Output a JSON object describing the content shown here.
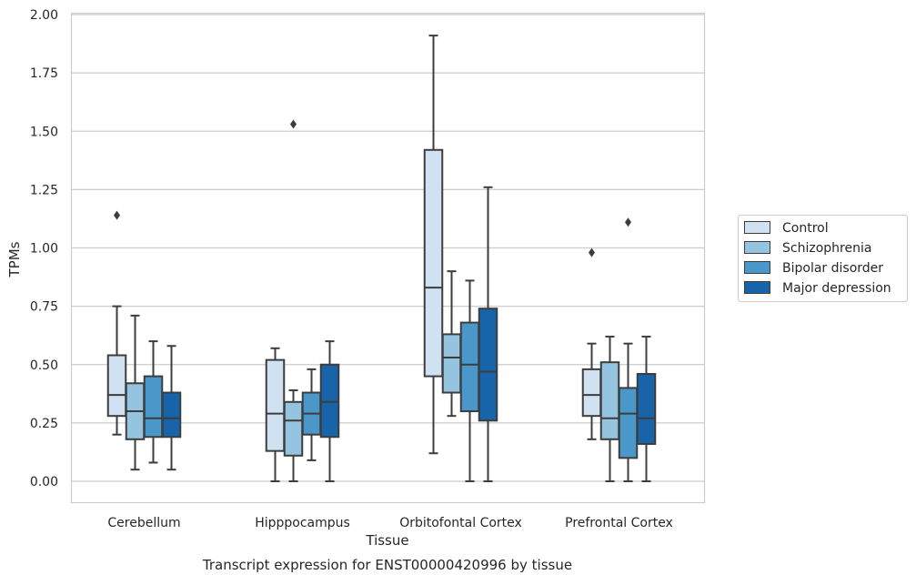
{
  "chart_data": {
    "type": "box",
    "xlabel": "Tissue",
    "ylabel": "TPMs",
    "caption": "Transcript expression for ENST00000420996 by tissue",
    "ylim": [
      -0.09,
      2.01
    ],
    "yticks": [
      "0.00",
      "0.25",
      "0.50",
      "0.75",
      "1.00",
      "1.25",
      "1.50",
      "1.75",
      "2.00"
    ],
    "grid": true,
    "legend_position": "right",
    "categories": [
      "Cerebellum",
      "Hipppocampus",
      "Orbitofontal Cortex",
      "Prefrontal Cortex"
    ],
    "series": [
      {
        "name": "Control",
        "color": "#d0e1f2",
        "boxes": [
          {
            "whislo": 0.2,
            "q1": 0.28,
            "med": 0.37,
            "q3": 0.54,
            "whishi": 0.75,
            "fliers": [
              1.14
            ]
          },
          {
            "whislo": 0.0,
            "q1": 0.13,
            "med": 0.29,
            "q3": 0.52,
            "whishi": 0.57,
            "fliers": []
          },
          {
            "whislo": 0.12,
            "q1": 0.45,
            "med": 0.83,
            "q3": 1.42,
            "whishi": 1.91,
            "fliers": []
          },
          {
            "whislo": 0.18,
            "q1": 0.28,
            "med": 0.37,
            "q3": 0.48,
            "whishi": 0.59,
            "fliers": [
              0.98
            ]
          }
        ]
      },
      {
        "name": "Schizophrenia",
        "color": "#94c4df",
        "boxes": [
          {
            "whislo": 0.05,
            "q1": 0.18,
            "med": 0.3,
            "q3": 0.42,
            "whishi": 0.71,
            "fliers": []
          },
          {
            "whislo": 0.0,
            "q1": 0.11,
            "med": 0.26,
            "q3": 0.34,
            "whishi": 0.39,
            "fliers": [
              1.53
            ]
          },
          {
            "whislo": 0.28,
            "q1": 0.38,
            "med": 0.53,
            "q3": 0.63,
            "whishi": 0.9,
            "fliers": []
          },
          {
            "whislo": 0.0,
            "q1": 0.18,
            "med": 0.27,
            "q3": 0.51,
            "whishi": 0.62,
            "fliers": []
          }
        ]
      },
      {
        "name": "Bipolar disorder",
        "color": "#4a98c9",
        "boxes": [
          {
            "whislo": 0.08,
            "q1": 0.19,
            "med": 0.27,
            "q3": 0.45,
            "whishi": 0.6,
            "fliers": []
          },
          {
            "whislo": 0.09,
            "q1": 0.2,
            "med": 0.29,
            "q3": 0.38,
            "whishi": 0.48,
            "fliers": []
          },
          {
            "whislo": 0.0,
            "q1": 0.3,
            "med": 0.5,
            "q3": 0.68,
            "whishi": 0.86,
            "fliers": []
          },
          {
            "whislo": 0.0,
            "q1": 0.1,
            "med": 0.29,
            "q3": 0.4,
            "whishi": 0.59,
            "fliers": [
              1.11
            ]
          }
        ]
      },
      {
        "name": "Major depression",
        "color": "#1764ab",
        "boxes": [
          {
            "whislo": 0.05,
            "q1": 0.19,
            "med": 0.27,
            "q3": 0.38,
            "whishi": 0.58,
            "fliers": []
          },
          {
            "whislo": 0.0,
            "q1": 0.19,
            "med": 0.34,
            "q3": 0.5,
            "whishi": 0.6,
            "fliers": []
          },
          {
            "whislo": 0.0,
            "q1": 0.26,
            "med": 0.47,
            "q3": 0.74,
            "whishi": 1.26,
            "fliers": []
          },
          {
            "whislo": 0.0,
            "q1": 0.16,
            "med": 0.27,
            "q3": 0.46,
            "whishi": 0.62,
            "fliers": []
          }
        ]
      }
    ]
  }
}
